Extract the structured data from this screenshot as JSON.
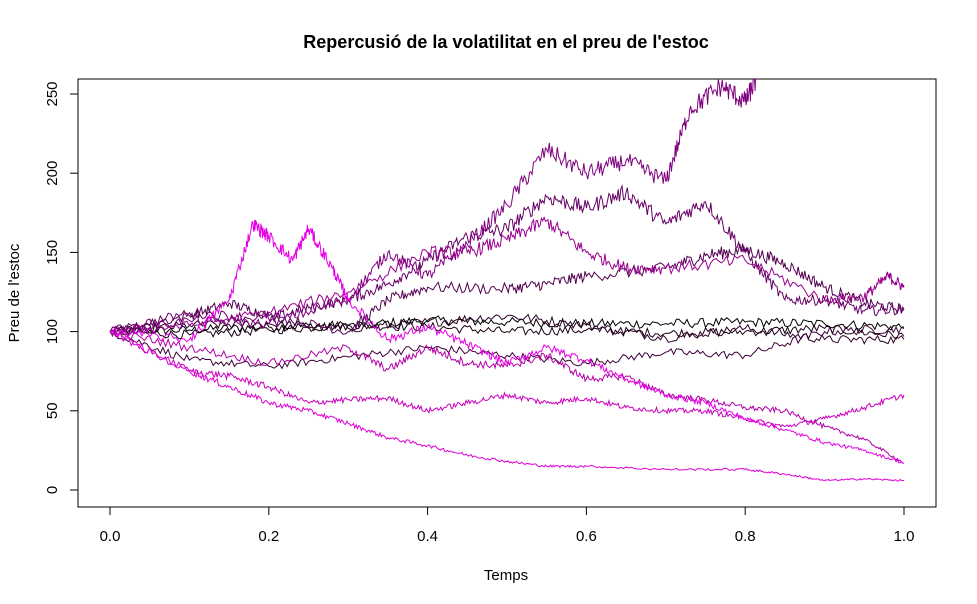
{
  "chart_data": {
    "type": "line",
    "title": "Repercusió de la volatilitat en el preu de l'estoc",
    "xlabel": "Temps",
    "ylabel": "Preu de l'estoc",
    "xlim": [
      0,
      1
    ],
    "ylim": [
      0,
      260
    ],
    "x_ticks": [
      "0.0",
      "0.2",
      "0.4",
      "0.6",
      "0.8",
      "1.0"
    ],
    "y_ticks": [
      "0",
      "50",
      "100",
      "150",
      "200",
      "250"
    ],
    "grid": false,
    "legend": "none",
    "series": [
      {
        "color": "#000000",
        "points": [
          [
            0,
            100
          ],
          [
            0.1,
            101
          ],
          [
            0.2,
            103
          ],
          [
            0.3,
            104
          ],
          [
            0.4,
            107
          ],
          [
            0.5,
            106
          ],
          [
            0.6,
            105
          ],
          [
            0.7,
            105
          ],
          [
            0.8,
            106
          ],
          [
            0.9,
            105
          ],
          [
            1.0,
            103
          ]
        ]
      },
      {
        "color": "#1a0016",
        "points": [
          [
            0,
            100
          ],
          [
            0.1,
            98
          ],
          [
            0.2,
            101
          ],
          [
            0.3,
            104
          ],
          [
            0.4,
            103
          ],
          [
            0.5,
            100
          ],
          [
            0.6,
            101
          ],
          [
            0.7,
            99
          ],
          [
            0.8,
            100
          ],
          [
            0.9,
            102
          ],
          [
            1.0,
            97
          ]
        ]
      },
      {
        "color": "#2b0026",
        "points": [
          [
            0,
            100
          ],
          [
            0.1,
            104
          ],
          [
            0.2,
            105
          ],
          [
            0.3,
            102
          ],
          [
            0.4,
            106
          ],
          [
            0.5,
            110
          ],
          [
            0.6,
            104
          ],
          [
            0.7,
            96
          ],
          [
            0.8,
            102
          ],
          [
            0.9,
            95
          ],
          [
            1.0,
            95
          ]
        ]
      },
      {
        "color": "#3d0038",
        "points": [
          [
            0,
            100
          ],
          [
            0.1,
            82
          ],
          [
            0.2,
            78
          ],
          [
            0.3,
            84
          ],
          [
            0.4,
            90
          ],
          [
            0.5,
            85
          ],
          [
            0.6,
            80
          ],
          [
            0.7,
            87
          ],
          [
            0.8,
            85
          ],
          [
            0.9,
            100
          ],
          [
            1.0,
            102
          ]
        ]
      },
      {
        "color": "#520050",
        "points": [
          [
            0,
            100
          ],
          [
            0.1,
            110
          ],
          [
            0.15,
            118
          ],
          [
            0.2,
            110
          ],
          [
            0.3,
            100
          ],
          [
            0.35,
            120
          ],
          [
            0.4,
            128
          ],
          [
            0.5,
            127
          ],
          [
            0.55,
            130
          ],
          [
            0.6,
            135
          ],
          [
            0.7,
            140
          ],
          [
            0.75,
            148
          ],
          [
            0.8,
            152
          ],
          [
            0.85,
            143
          ],
          [
            0.9,
            128
          ],
          [
            0.95,
            118
          ],
          [
            1.0,
            114
          ]
        ]
      },
      {
        "color": "#660066",
        "points": [
          [
            0,
            100
          ],
          [
            0.1,
            112
          ],
          [
            0.2,
            108
          ],
          [
            0.25,
            115
          ],
          [
            0.3,
            120
          ],
          [
            0.35,
            130
          ],
          [
            0.4,
            145
          ],
          [
            0.45,
            160
          ],
          [
            0.5,
            165
          ],
          [
            0.55,
            185
          ],
          [
            0.6,
            178
          ],
          [
            0.65,
            188
          ],
          [
            0.7,
            168
          ],
          [
            0.75,
            182
          ],
          [
            0.8,
            150
          ],
          [
            0.85,
            120
          ],
          [
            0.9,
            120
          ],
          [
            0.95,
            113
          ],
          [
            1.0,
            114
          ]
        ]
      },
      {
        "color": "#800080",
        "points": [
          [
            0,
            100
          ],
          [
            0.1,
            107
          ],
          [
            0.2,
            105
          ],
          [
            0.3,
            120
          ],
          [
            0.35,
            150
          ],
          [
            0.4,
            135
          ],
          [
            0.45,
            155
          ],
          [
            0.5,
            180
          ],
          [
            0.55,
            215
          ],
          [
            0.6,
            200
          ],
          [
            0.65,
            208
          ],
          [
            0.7,
            195
          ],
          [
            0.73,
            240
          ],
          [
            0.77,
            255
          ],
          [
            0.8,
            245
          ],
          [
            0.815,
            260
          ]
        ]
      },
      {
        "color": "#99008f",
        "points": [
          [
            0,
            100
          ],
          [
            0.1,
            104
          ],
          [
            0.2,
            112
          ],
          [
            0.3,
            125
          ],
          [
            0.4,
            150
          ],
          [
            0.45,
            150
          ],
          [
            0.5,
            158
          ],
          [
            0.55,
            170
          ],
          [
            0.6,
            150
          ],
          [
            0.65,
            140
          ],
          [
            0.7,
            140
          ],
          [
            0.8,
            145
          ],
          [
            0.9,
            120
          ],
          [
            0.95,
            122
          ],
          [
            0.98,
            135
          ],
          [
            1.0,
            128
          ]
        ]
      },
      {
        "color": "#b300a6",
        "points": [
          [
            0,
            100
          ],
          [
            0.1,
            90
          ],
          [
            0.2,
            80
          ],
          [
            0.3,
            90
          ],
          [
            0.35,
            76
          ],
          [
            0.4,
            90
          ],
          [
            0.45,
            80
          ],
          [
            0.5,
            78
          ],
          [
            0.55,
            85
          ],
          [
            0.6,
            70
          ],
          [
            0.65,
            72
          ],
          [
            0.7,
            60
          ],
          [
            0.75,
            57
          ],
          [
            0.8,
            52
          ],
          [
            0.85,
            50
          ],
          [
            0.9,
            40
          ],
          [
            0.95,
            32
          ],
          [
            1.0,
            17
          ]
        ]
      },
      {
        "color": "#cc00bf",
        "points": [
          [
            0,
            100
          ],
          [
            0.1,
            75
          ],
          [
            0.15,
            72
          ],
          [
            0.2,
            65
          ],
          [
            0.25,
            55
          ],
          [
            0.3,
            57
          ],
          [
            0.35,
            58
          ],
          [
            0.4,
            50
          ],
          [
            0.45,
            55
          ],
          [
            0.5,
            60
          ],
          [
            0.55,
            55
          ],
          [
            0.6,
            58
          ],
          [
            0.65,
            52
          ],
          [
            0.7,
            50
          ],
          [
            0.75,
            50
          ],
          [
            0.8,
            45
          ],
          [
            0.85,
            40
          ],
          [
            0.9,
            45
          ],
          [
            0.95,
            52
          ],
          [
            1.0,
            60
          ]
        ]
      },
      {
        "color": "#dd00d6",
        "points": [
          [
            0,
            100
          ],
          [
            0.1,
            75
          ],
          [
            0.15,
            65
          ],
          [
            0.2,
            55
          ],
          [
            0.25,
            50
          ],
          [
            0.3,
            42
          ],
          [
            0.35,
            33
          ],
          [
            0.4,
            28
          ],
          [
            0.45,
            22
          ],
          [
            0.5,
            18
          ],
          [
            0.55,
            15
          ],
          [
            0.6,
            15
          ],
          [
            0.7,
            13
          ],
          [
            0.8,
            13
          ],
          [
            0.85,
            10
          ],
          [
            0.9,
            6
          ],
          [
            0.95,
            7
          ],
          [
            1.0,
            6
          ]
        ]
      },
      {
        "color": "#e600e6",
        "points": [
          [
            0,
            100
          ],
          [
            0.1,
            95
          ],
          [
            0.15,
            120
          ],
          [
            0.18,
            168
          ],
          [
            0.2,
            160
          ],
          [
            0.23,
            145
          ],
          [
            0.25,
            165
          ],
          [
            0.28,
            140
          ],
          [
            0.3,
            120
          ],
          [
            0.35,
            95
          ],
          [
            0.4,
            103
          ],
          [
            0.45,
            92
          ],
          [
            0.5,
            80
          ],
          [
            0.55,
            90
          ],
          [
            0.6,
            82
          ],
          [
            0.65,
            70
          ],
          [
            0.7,
            60
          ],
          [
            0.75,
            55
          ],
          [
            0.8,
            45
          ],
          [
            0.85,
            38
          ],
          [
            0.9,
            30
          ],
          [
            0.95,
            25
          ],
          [
            1.0,
            17
          ]
        ]
      }
    ]
  }
}
